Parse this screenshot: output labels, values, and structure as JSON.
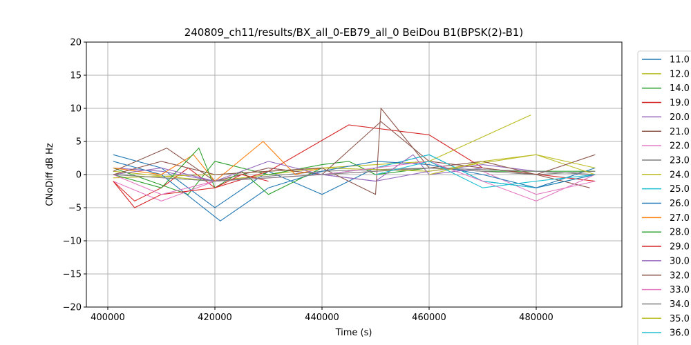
{
  "chart_data": {
    "type": "line",
    "title": "240809_ch11/results/BX_all_0-EB79_all_0 BeiDou B1(BPSK(2)-B1)",
    "xlabel": "Time (s)",
    "ylabel": "CNoDiff dB Hz",
    "xlim": [
      396000,
      496000
    ],
    "ylim": [
      -20,
      20
    ],
    "x_ticks": [
      400000,
      420000,
      440000,
      460000,
      480000
    ],
    "y_ticks": [
      -20,
      -15,
      -10,
      -5,
      0,
      5,
      10,
      15,
      20
    ],
    "grid": true,
    "legend_position": "right, outside plot area",
    "series": [
      {
        "name": "11.0",
        "color": "#1f77b4",
        "x": [
          401000,
          410000,
          420000,
          430000,
          440000,
          450000,
          455000,
          460000,
          470000,
          480000,
          491000
        ],
        "y": [
          3.0,
          1.0,
          -5.0,
          0.5,
          -3.0,
          1.0,
          2.0,
          3.0,
          -1.0,
          -2.0,
          1.0
        ]
      },
      {
        "name": "12.0",
        "color": "#bcbd22",
        "x": [
          401000,
          420000,
          440000,
          460000,
          479000
        ],
        "y": [
          0.5,
          -1.0,
          1.0,
          2.0,
          9.0
        ]
      },
      {
        "name": "14.0",
        "color": "#2ca02c",
        "x": [
          401000,
          415000,
          420000,
          430000,
          440000,
          445000,
          450000,
          460000,
          470000,
          491000
        ],
        "y": [
          1.0,
          -3.0,
          2.0,
          0.0,
          1.5,
          2.0,
          0.0,
          1.0,
          0.5,
          0.5
        ]
      },
      {
        "name": "19.0",
        "color": "#d62728",
        "x": [
          401000,
          405000,
          410000,
          415000,
          420000,
          430000,
          445000,
          460000,
          470000,
          491000
        ],
        "y": [
          -1.0,
          -4.0,
          -2.0,
          1.0,
          -2.0,
          0.5,
          7.5,
          6.0,
          1.0,
          -1.0
        ]
      },
      {
        "name": "20.0",
        "color": "#9467bd",
        "x": [
          401000,
          410000,
          420000,
          430000,
          440000,
          450000,
          460000,
          470000,
          480000,
          491000
        ],
        "y": [
          1.0,
          0.5,
          -1.0,
          1.0,
          0.0,
          -1.0,
          0.5,
          1.5,
          0.5,
          0.0
        ]
      },
      {
        "name": "21.0",
        "color": "#8c564b",
        "x": [
          401000,
          411000,
          420000,
          430000,
          440000,
          451000,
          460000,
          470000,
          480000,
          490000
        ],
        "y": [
          0.5,
          4.0,
          -1.0,
          1.0,
          0.0,
          8.0,
          2.0,
          1.0,
          0.0,
          -2.0
        ]
      },
      {
        "name": "22.0",
        "color": "#e377c2",
        "x": [
          401000,
          410000,
          420000,
          440000,
          460000,
          470000,
          480000,
          491000
        ],
        "y": [
          -1.0,
          -4.0,
          -1.0,
          0.0,
          1.0,
          0.5,
          -3.0,
          -1.0
        ]
      },
      {
        "name": "23.0",
        "color": "#7f7f7f",
        "x": [
          401000,
          420000,
          440000,
          460000,
          480000,
          491000
        ],
        "y": [
          0.0,
          -1.0,
          0.5,
          1.0,
          0.0,
          0.5
        ]
      },
      {
        "name": "24.0",
        "color": "#bcbd22",
        "x": [
          401000,
          420000,
          440000,
          460000,
          480000,
          491000
        ],
        "y": [
          -0.5,
          0.0,
          1.0,
          0.5,
          3.0,
          0.0
        ]
      },
      {
        "name": "25.0",
        "color": "#17becf",
        "x": [
          440000,
          450000,
          460000,
          470000,
          480000,
          491000
        ],
        "y": [
          0.0,
          1.0,
          3.0,
          -1.0,
          -2.0,
          0.0
        ]
      },
      {
        "name": "26.0",
        "color": "#1f77b4",
        "x": [
          401000,
          410000,
          421000,
          430000,
          440000,
          450000,
          460000,
          470000,
          480000,
          491000
        ],
        "y": [
          2.0,
          0.0,
          -7.0,
          -2.0,
          0.5,
          2.0,
          1.5,
          0.0,
          -2.0,
          0.0
        ]
      },
      {
        "name": "27.0",
        "color": "#ff7f0e",
        "x": [
          401000,
          410000,
          416000,
          420000,
          429000,
          435000,
          440000
        ],
        "y": [
          1.0,
          0.0,
          3.0,
          -1.0,
          5.0,
          0.0,
          1.0
        ]
      },
      {
        "name": "28.0",
        "color": "#2ca02c",
        "x": [
          401000,
          410000,
          417000,
          420000,
          425000,
          430000,
          440000
        ],
        "y": [
          0.0,
          -2.0,
          4.0,
          -2.0,
          0.5,
          -3.0,
          1.0
        ]
      },
      {
        "name": "29.0",
        "color": "#d62728",
        "x": [
          401000,
          405000,
          410000,
          420000,
          425000,
          430000
        ],
        "y": [
          -1.0,
          -5.0,
          -3.0,
          -2.0,
          0.0,
          -1.0
        ]
      },
      {
        "name": "30.0",
        "color": "#9467bd",
        "x": [
          401000,
          410000,
          420000,
          430000,
          440000,
          450000,
          457000,
          460000,
          470000
        ],
        "y": [
          0.0,
          1.0,
          -1.0,
          2.0,
          0.0,
          -1.0,
          3.0,
          0.0,
          1.0
        ]
      },
      {
        "name": "32.0",
        "color": "#8c564b",
        "x": [
          401000,
          410000,
          420000,
          440000,
          450000,
          451000,
          460000,
          470000,
          480000,
          491000
        ],
        "y": [
          0.0,
          2.0,
          0.0,
          1.0,
          -3.0,
          10.0,
          1.0,
          2.0,
          0.0,
          3.0
        ]
      },
      {
        "name": "33.0",
        "color": "#e377c2",
        "x": [
          401000,
          410000,
          420000,
          440000,
          460000,
          470000,
          480000,
          491000
        ],
        "y": [
          0.0,
          -3.0,
          -1.0,
          0.0,
          2.0,
          -1.0,
          -4.0,
          0.0
        ]
      },
      {
        "name": "34.0",
        "color": "#7f7f7f",
        "x": [
          401000,
          420000,
          440000,
          460000,
          480000,
          491000
        ],
        "y": [
          0.0,
          -1.0,
          0.0,
          1.0,
          0.5,
          0.0
        ]
      },
      {
        "name": "35.0",
        "color": "#bcbd22",
        "x": [
          460000,
          470000,
          480000,
          491000
        ],
        "y": [
          0.0,
          2.0,
          3.0,
          1.0
        ]
      },
      {
        "name": "36.0",
        "color": "#17becf",
        "x": [
          450000,
          460000,
          470000,
          480000,
          491000
        ],
        "y": [
          0.0,
          2.0,
          -2.0,
          -1.0,
          0.0
        ]
      }
    ]
  }
}
